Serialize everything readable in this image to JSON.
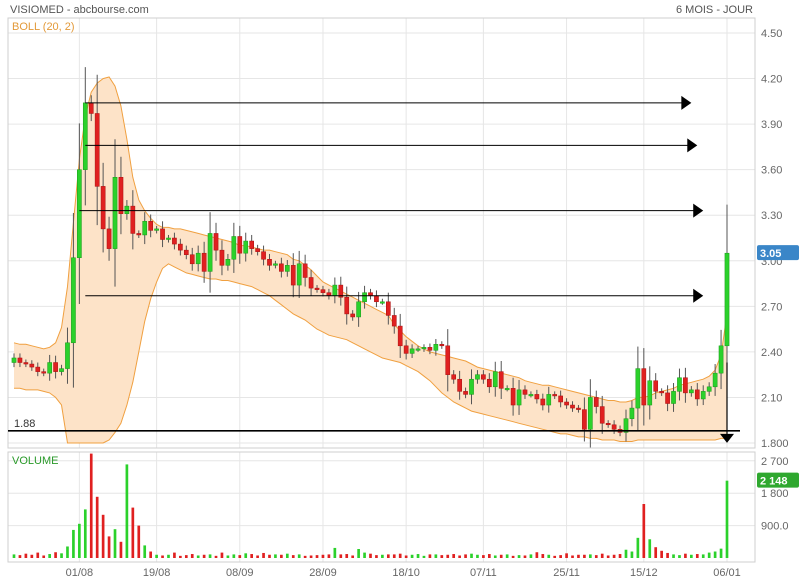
{
  "header": {
    "title": "VISIOMED - abcbourse.com",
    "period": "6 MOIS - JOUR",
    "indicator": "BOLL (20, 2)",
    "volume_label": "VOLUME"
  },
  "colors": {
    "up": "#2bd12b",
    "down": "#e02020",
    "band_fill": "#fde3c8",
    "band_line": "#f0a040",
    "grid": "#e6e6e6",
    "arrow": "#000000",
    "badge_price": "#3a86c8",
    "badge_volume": "#2fa82f"
  },
  "chart_data": [
    {
      "type": "candlestick",
      "title": "VISIOMED - abcbourse.com",
      "subtitle": "6 MOIS - JOUR",
      "indicator": "BOLL (20, 2)",
      "ylim": [
        1.8,
        4.5
      ],
      "yticks": [
        "4.50",
        "4.20",
        "3.90",
        "3.60",
        "3.30",
        "3.00",
        "2.70",
        "2.40",
        "2.10",
        "1.800"
      ],
      "x_tick_labels": [
        "01/08",
        "19/08",
        "08/09",
        "28/09",
        "18/10",
        "07/11",
        "25/11",
        "15/12",
        "06/01"
      ],
      "last_price_label": "3.05",
      "last_price": 3.05,
      "support_label": "1.88",
      "support_level": 1.88,
      "closes": [
        2.36,
        2.33,
        2.32,
        2.3,
        2.27,
        2.26,
        2.33,
        2.27,
        2.29,
        2.46,
        3.02,
        3.6,
        4.04,
        3.97,
        3.49,
        3.21,
        3.08,
        3.55,
        3.31,
        3.36,
        3.18,
        3.17,
        3.26,
        3.2,
        3.21,
        3.14,
        3.15,
        3.11,
        3.07,
        3.04,
        2.98,
        3.05,
        2.93,
        3.18,
        3.07,
        2.97,
        3.01,
        3.16,
        3.05,
        3.13,
        3.08,
        3.06,
        3.01,
        2.97,
        2.98,
        2.93,
        2.97,
        2.84,
        2.98,
        2.89,
        2.82,
        2.81,
        2.79,
        2.77,
        2.84,
        2.76,
        2.65,
        2.63,
        2.73,
        2.79,
        2.77,
        2.73,
        2.73,
        2.64,
        2.57,
        2.44,
        2.39,
        2.42,
        2.42,
        2.43,
        2.41,
        2.45,
        2.44,
        2.25,
        2.22,
        2.14,
        2.12,
        2.22,
        2.25,
        2.22,
        2.17,
        2.27,
        2.16,
        2.16,
        2.05,
        2.15,
        2.12,
        2.12,
        2.09,
        2.05,
        2.12,
        2.11,
        2.07,
        2.05,
        2.03,
        2.02,
        1.89,
        2.1,
        2.04,
        1.93,
        1.92,
        1.89,
        1.87,
        1.96,
        2.03,
        2.29,
        2.05,
        2.21,
        2.14,
        2.13,
        2.06,
        2.14,
        2.23,
        2.13,
        2.15,
        2.09,
        2.14,
        2.17,
        2.26,
        2.44,
        3.05
      ],
      "upper_band": [
        2.46,
        2.45,
        2.45,
        2.44,
        2.43,
        2.42,
        2.43,
        2.46,
        2.56,
        2.83,
        3.25,
        3.67,
        3.95,
        4.11,
        4.17,
        4.2,
        4.21,
        4.15,
        4.02,
        3.8,
        3.55,
        3.4,
        3.33,
        3.28,
        3.24,
        3.22,
        3.22,
        3.21,
        3.21,
        3.2,
        3.19,
        3.18,
        3.17,
        3.16,
        3.15,
        3.14,
        3.13,
        3.12,
        3.1,
        3.1,
        3.09,
        3.08,
        3.07,
        3.07,
        3.06,
        3.05,
        3.04,
        3.01,
        3.0,
        2.97,
        2.94,
        2.9,
        2.86,
        2.84,
        2.82,
        2.8,
        2.78,
        2.76,
        2.74,
        2.72,
        2.7,
        2.68,
        2.66,
        2.64,
        2.58,
        2.54,
        2.5,
        2.47,
        2.44,
        2.42,
        2.4,
        2.39,
        2.38,
        2.37,
        2.36,
        2.35,
        2.34,
        2.32,
        2.3,
        2.29,
        2.28,
        2.27,
        2.26,
        2.25,
        2.24,
        2.23,
        2.21,
        2.2,
        2.19,
        2.18,
        2.18,
        2.17,
        2.16,
        2.15,
        2.14,
        2.13,
        2.12,
        2.11,
        2.1,
        2.09,
        2.08,
        2.08,
        2.07,
        2.07,
        2.08,
        2.1,
        2.1,
        2.11,
        2.13,
        2.14,
        2.15,
        2.16,
        2.18,
        2.19,
        2.2,
        2.21,
        2.22,
        2.24,
        2.28,
        2.38,
        2.65
      ],
      "lower_band": [
        2.16,
        2.16,
        2.15,
        2.15,
        2.15,
        2.14,
        2.13,
        2.1,
        2.05,
        1.8,
        1.8,
        1.8,
        1.8,
        1.8,
        1.8,
        1.8,
        1.82,
        1.87,
        1.93,
        2.05,
        2.2,
        2.4,
        2.6,
        2.75,
        2.86,
        2.95,
        2.98,
        2.96,
        2.94,
        2.92,
        2.91,
        2.9,
        2.89,
        2.88,
        2.88,
        2.87,
        2.87,
        2.86,
        2.85,
        2.84,
        2.83,
        2.81,
        2.79,
        2.77,
        2.74,
        2.71,
        2.68,
        2.65,
        2.63,
        2.61,
        2.58,
        2.55,
        2.53,
        2.51,
        2.5,
        2.49,
        2.48,
        2.46,
        2.44,
        2.42,
        2.4,
        2.38,
        2.36,
        2.35,
        2.34,
        2.33,
        2.31,
        2.29,
        2.27,
        2.24,
        2.21,
        2.17,
        2.13,
        2.1,
        2.07,
        2.05,
        2.03,
        2.01,
        2.0,
        1.99,
        1.98,
        1.97,
        1.96,
        1.95,
        1.94,
        1.93,
        1.92,
        1.91,
        1.9,
        1.89,
        1.88,
        1.87,
        1.86,
        1.86,
        1.85,
        1.84,
        1.84,
        1.83,
        1.83,
        1.82,
        1.82,
        1.82,
        1.81,
        1.81,
        1.81,
        1.82,
        1.82,
        1.82,
        1.82,
        1.82,
        1.82,
        1.82,
        1.82,
        1.82,
        1.82,
        1.82,
        1.82,
        1.82,
        1.82,
        1.83,
        1.83
      ],
      "annotation_lines": [
        {
          "y": 4.04,
          "x_start_index": 12,
          "x_end_index": 114
        },
        {
          "y": 3.76,
          "x_start_index": 12,
          "x_end_index": 115
        },
        {
          "y": 3.33,
          "x_start_index": 11,
          "x_end_index": 116
        },
        {
          "y": 2.77,
          "x_start_index": 12,
          "x_end_index": 116
        }
      ],
      "grid": true
    },
    {
      "type": "bar",
      "title": "VOLUME",
      "yticks": [
        "2 700",
        "1 800",
        "900.0"
      ],
      "ylim": [
        0,
        3000
      ],
      "last_volume_label": "2 148",
      "volumes": [
        100,
        80,
        120,
        90,
        150,
        70,
        110,
        160,
        130,
        320,
        780,
        950,
        1350,
        2900,
        1700,
        1200,
        600,
        800,
        450,
        2600,
        1400,
        900,
        350,
        180,
        90,
        70,
        90,
        150,
        60,
        80,
        110,
        70,
        90,
        100,
        60,
        150,
        70,
        100,
        80,
        130,
        110,
        70,
        140,
        90,
        100,
        90,
        120,
        80,
        100,
        60,
        70,
        80,
        90,
        100,
        280,
        100,
        110,
        70,
        250,
        150,
        120,
        80,
        90,
        100,
        100,
        120,
        70,
        90,
        110,
        60,
        100,
        100,
        80,
        90,
        110,
        70,
        100,
        120,
        90,
        80,
        110,
        70,
        90,
        100,
        60,
        80,
        70,
        100,
        160,
        110,
        90,
        60,
        80,
        130,
        70,
        90,
        90,
        100,
        80,
        120,
        70,
        90,
        110,
        230,
        180,
        560,
        1500,
        520,
        300,
        200,
        140,
        100,
        80,
        120,
        90,
        110,
        100,
        150,
        180,
        260,
        2148
      ]
    }
  ]
}
